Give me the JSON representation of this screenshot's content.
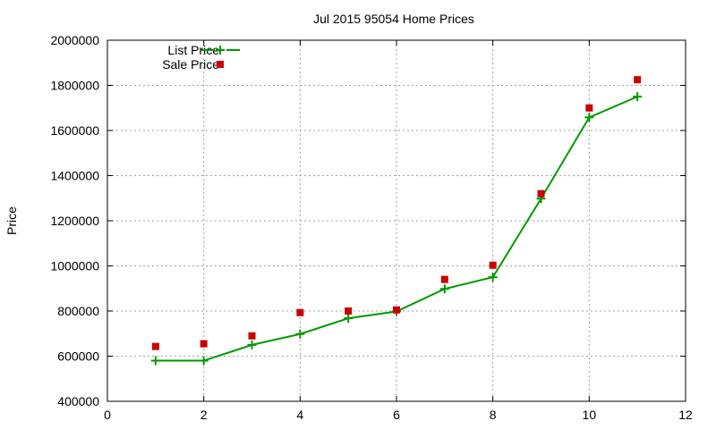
{
  "chart_data": {
    "type": "line",
    "title": "Jul 2015 95054 Home Prices",
    "xlabel": "",
    "ylabel": "Price",
    "xlim": [
      0,
      12
    ],
    "ylim": [
      400000,
      2000000
    ],
    "x_ticks": [
      "0",
      "2",
      "4",
      "6",
      "8",
      "10",
      "12"
    ],
    "y_ticks": [
      "400000",
      "600000",
      "800000",
      "1000000",
      "1200000",
      "1400000",
      "1600000",
      "1800000",
      "2000000"
    ],
    "grid": true,
    "legend_position": "top-left",
    "series": [
      {
        "name": "List Price",
        "style": "line-with-plus-markers",
        "color": "#009900",
        "x": [
          1,
          2,
          3,
          4,
          5,
          6,
          7,
          8,
          9,
          10,
          11
        ],
        "y": [
          580000,
          580000,
          650000,
          698000,
          768000,
          798000,
          898000,
          950000,
          1298000,
          1658000,
          1750000
        ]
      },
      {
        "name": "Sale Price",
        "style": "square-markers",
        "color": "#cc0000",
        "x": [
          1,
          2,
          3,
          4,
          5,
          6,
          7,
          8,
          9,
          10,
          11
        ],
        "y": [
          643000,
          655000,
          690000,
          793000,
          800000,
          805000,
          940000,
          1003000,
          1320000,
          1700000,
          1825000
        ]
      }
    ]
  }
}
